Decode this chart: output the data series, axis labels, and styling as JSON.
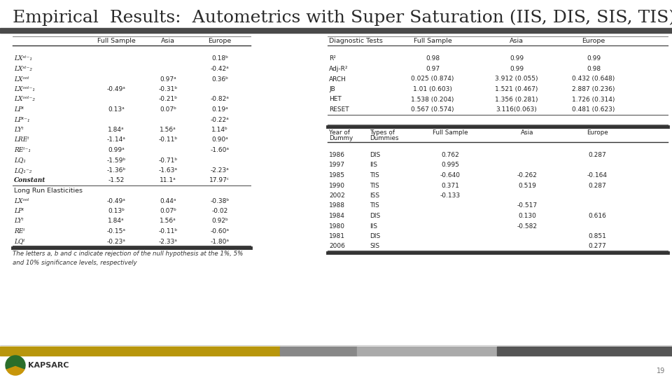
{
  "title": "Empirical  Results:  Autometrics with Super Saturation (IIS, DIS, SIS, TIS)",
  "title_fontsize": 18,
  "bg_color": "#ffffff",
  "dark_bar_color": "#4a4a4a",
  "slide_number": "19",
  "left_table": {
    "rows": [
      [
        "LXˢᵗ⁻₁",
        "",
        "",
        "0.18ᵇ"
      ],
      [
        "LXˢᵗ⁻₂",
        "",
        "",
        "-0.42ᵃ"
      ],
      [
        "LXᵒᵒᵗ",
        "",
        "0.97ᵃ",
        "0.36ᵇ"
      ],
      [
        "LXᵒᵒᵗ⁻₁",
        "-0.49ᵃ",
        "-0.31ᵇ",
        ""
      ],
      [
        "LXᵒᵒᵗ⁻₂",
        "",
        "-0.21ᵇ",
        "-0.82ᵃ"
      ],
      [
        "LPᵗ",
        "0.13ᵃ",
        "0.07ᵇ",
        "0.19ᵃ"
      ],
      [
        "LPᵗ⁻₁",
        "",
        "",
        "-0.22ᵃ"
      ],
      [
        "LYᵗ",
        "1.84ᵃ",
        "1.56ᵃ",
        "1.14ᵇ"
      ],
      [
        "LREᵗ",
        "-1.14ᵃ",
        "-0.11ᵇ",
        "0.90ᵃ"
      ],
      [
        "REᵗ⁻₁",
        "0.99ᵃ",
        "",
        "-1.60ᵃ"
      ],
      [
        "LQ₁",
        "-1.59ᵇ",
        "-0.71ᵇ",
        ""
      ],
      [
        "LQ₁⁻₂",
        "-1.36ᵇ",
        "-1.63ᵃ",
        "-2.23ᵃ"
      ],
      [
        "Constant",
        "-1.52",
        "11.1ᵃ",
        "17.97ᶜ"
      ]
    ],
    "section_header": "Long Run Elasticities",
    "section_rows": [
      [
        "LXᵒᵒᵗ",
        "-0.49ᵃ",
        "0.44ᵃ",
        "-0.38ᵇ"
      ],
      [
        "LPᵗ",
        "0.13ᵇ",
        "0.07ᵇ",
        "-0.02"
      ],
      [
        "LYᵗ",
        "1.84ᵃ",
        "1.56ᵃ",
        "0.92ᵇ"
      ],
      [
        "REᵗ",
        "-0.15ᵃ",
        "-0.11ᵇ",
        "-0.60ᵃ"
      ],
      [
        "LQᵗ",
        "-0.23ᵃ",
        "-2.33ᵃ",
        "-1.80ᵃ"
      ]
    ]
  },
  "diag_table": {
    "title": "Diagnostic Tests",
    "rows": [
      [
        "R²",
        "0.98",
        "0.99",
        "0.99"
      ],
      [
        "Adj-R²",
        "0.97",
        "0.99",
        "0.98"
      ],
      [
        "ARCH",
        "0.025 (0.874)",
        "3.912 (0.055)",
        "0.432 (0.648)"
      ],
      [
        "JB",
        "1.01 (0.603)",
        "1.521 (0.467)",
        "2.887 (0.236)"
      ],
      [
        "HET",
        "1.538 (0.204)",
        "1.356 (0.281)",
        "1.726 (0.314)"
      ],
      [
        "RESET",
        "0.567 (0.574)",
        "3.116(0.063)",
        "0.481 (0.623)"
      ]
    ]
  },
  "dummy_table": {
    "rows": [
      [
        "1986",
        "DIS",
        "0.762",
        "",
        "0.287"
      ],
      [
        "1997",
        "IIS",
        "0.995",
        "",
        ""
      ],
      [
        "1985",
        "TIS",
        "-0.640",
        "-0.262",
        "-0.164"
      ],
      [
        "1990",
        "TIS",
        "0.371",
        "0.519",
        "0.287"
      ],
      [
        "2002",
        "ISS",
        "-0.133",
        "",
        ""
      ],
      [
        "1988",
        "TIS",
        "",
        "-0.517",
        ""
      ],
      [
        "1984",
        "DIS",
        "",
        "0.130",
        "0.616"
      ],
      [
        "1980",
        "IIS",
        "",
        "-0.582",
        ""
      ],
      [
        "1981",
        "DIS",
        "",
        "",
        "0.851"
      ],
      [
        "2006",
        "SIS",
        "",
        "",
        "0.277"
      ]
    ]
  },
  "footnote": "The letters a, b and c indicate rejection of the null hypothesis at the 1%, 5%\nand 10% significance levels, respectively"
}
